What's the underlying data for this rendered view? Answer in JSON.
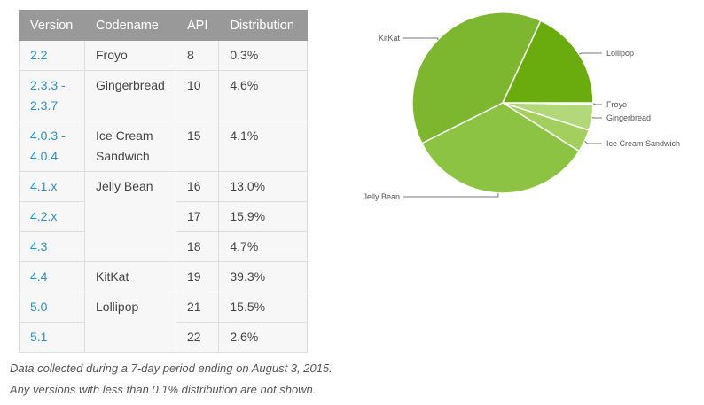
{
  "table": {
    "headers": [
      "Version",
      "Codename",
      "API",
      "Distribution"
    ],
    "rows": [
      {
        "version": "2.2",
        "codename": "Froyo",
        "api": "8",
        "distribution": "0.3%"
      },
      {
        "version": "2.3.3 - 2.3.7",
        "codename": "Gingerbread",
        "api": "10",
        "distribution": "4.6%"
      },
      {
        "version": "4.0.3 - 4.0.4",
        "codename": "Ice Cream Sandwich",
        "api": "15",
        "distribution": "4.1%"
      },
      {
        "version": "4.1.x",
        "codename": "Jelly Bean",
        "api": "16",
        "distribution": "13.0%"
      },
      {
        "version": "4.2.x",
        "codename": "",
        "api": "17",
        "distribution": "15.9%"
      },
      {
        "version": "4.3",
        "codename": "",
        "api": "18",
        "distribution": "4.7%"
      },
      {
        "version": "4.4",
        "codename": "KitKat",
        "api": "19",
        "distribution": "39.3%"
      },
      {
        "version": "5.0",
        "codename": "Lollipop",
        "api": "21",
        "distribution": "15.5%"
      },
      {
        "version": "5.1",
        "codename": "",
        "api": "22",
        "distribution": "2.6%"
      }
    ]
  },
  "notes": {
    "line1": "Data collected during a 7-day period ending on August 3, 2015.",
    "line2": "Any versions with less than 0.1% distribution are not shown."
  },
  "chart_data": {
    "type": "pie",
    "title": "",
    "categories": [
      "Froyo",
      "Gingerbread",
      "Ice Cream Sandwich",
      "Jelly Bean",
      "KitKat",
      "Lollipop"
    ],
    "values": [
      0.3,
      4.6,
      4.1,
      33.6,
      39.3,
      18.1
    ],
    "colors": [
      "#c8e4a0",
      "#b2d87a",
      "#a2cf5e",
      "#8dc342",
      "#7db72f",
      "#6aac0e"
    ],
    "legend": "callout labels"
  }
}
